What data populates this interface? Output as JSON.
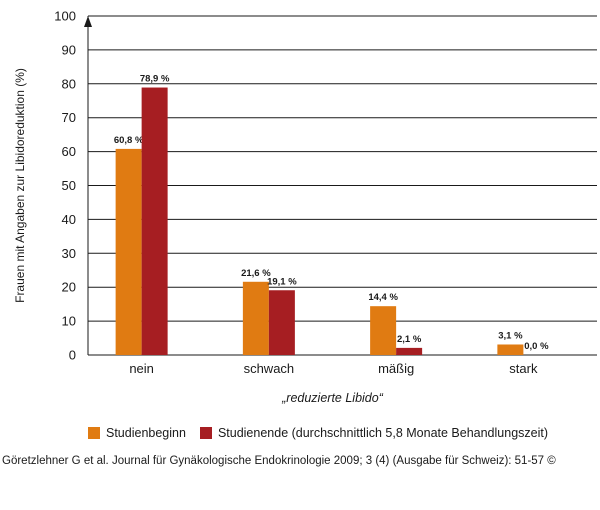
{
  "chart_data": {
    "type": "bar",
    "title": "",
    "ylabel": "Frauen mit Angaben zur Libidoreduktion (%)",
    "xlabel": "„reduzierte Libido“",
    "ylim": [
      0,
      100
    ],
    "yticks": [
      0,
      10,
      20,
      30,
      40,
      50,
      60,
      70,
      80,
      90,
      100
    ],
    "categories": [
      "nein",
      "schwach",
      "mäßig",
      "stark"
    ],
    "grid": true,
    "legend_position": "bottom",
    "series": [
      {
        "name": "Studienbeginn",
        "color": "#e07b12",
        "values": [
          60.8,
          21.6,
          14.4,
          3.1
        ],
        "labels": [
          "60,8 %",
          "21,6 %",
          "14,4 %",
          "3,1 %"
        ]
      },
      {
        "name": "Studienende (durchschnittlich 5,8 Monate Behandlungszeit)",
        "color": "#a61e22",
        "values": [
          78.9,
          19.1,
          2.1,
          0.0
        ],
        "labels": [
          "78,9 %",
          "19,1 %",
          "2,1 %",
          "0,0 %"
        ]
      }
    ]
  },
  "source_text": "Göretzlehner G  et al. Journal für Gynäkologische Endokrinologie 2009; 3 (4) (Ausgabe für Schweiz): 51-57 ©"
}
